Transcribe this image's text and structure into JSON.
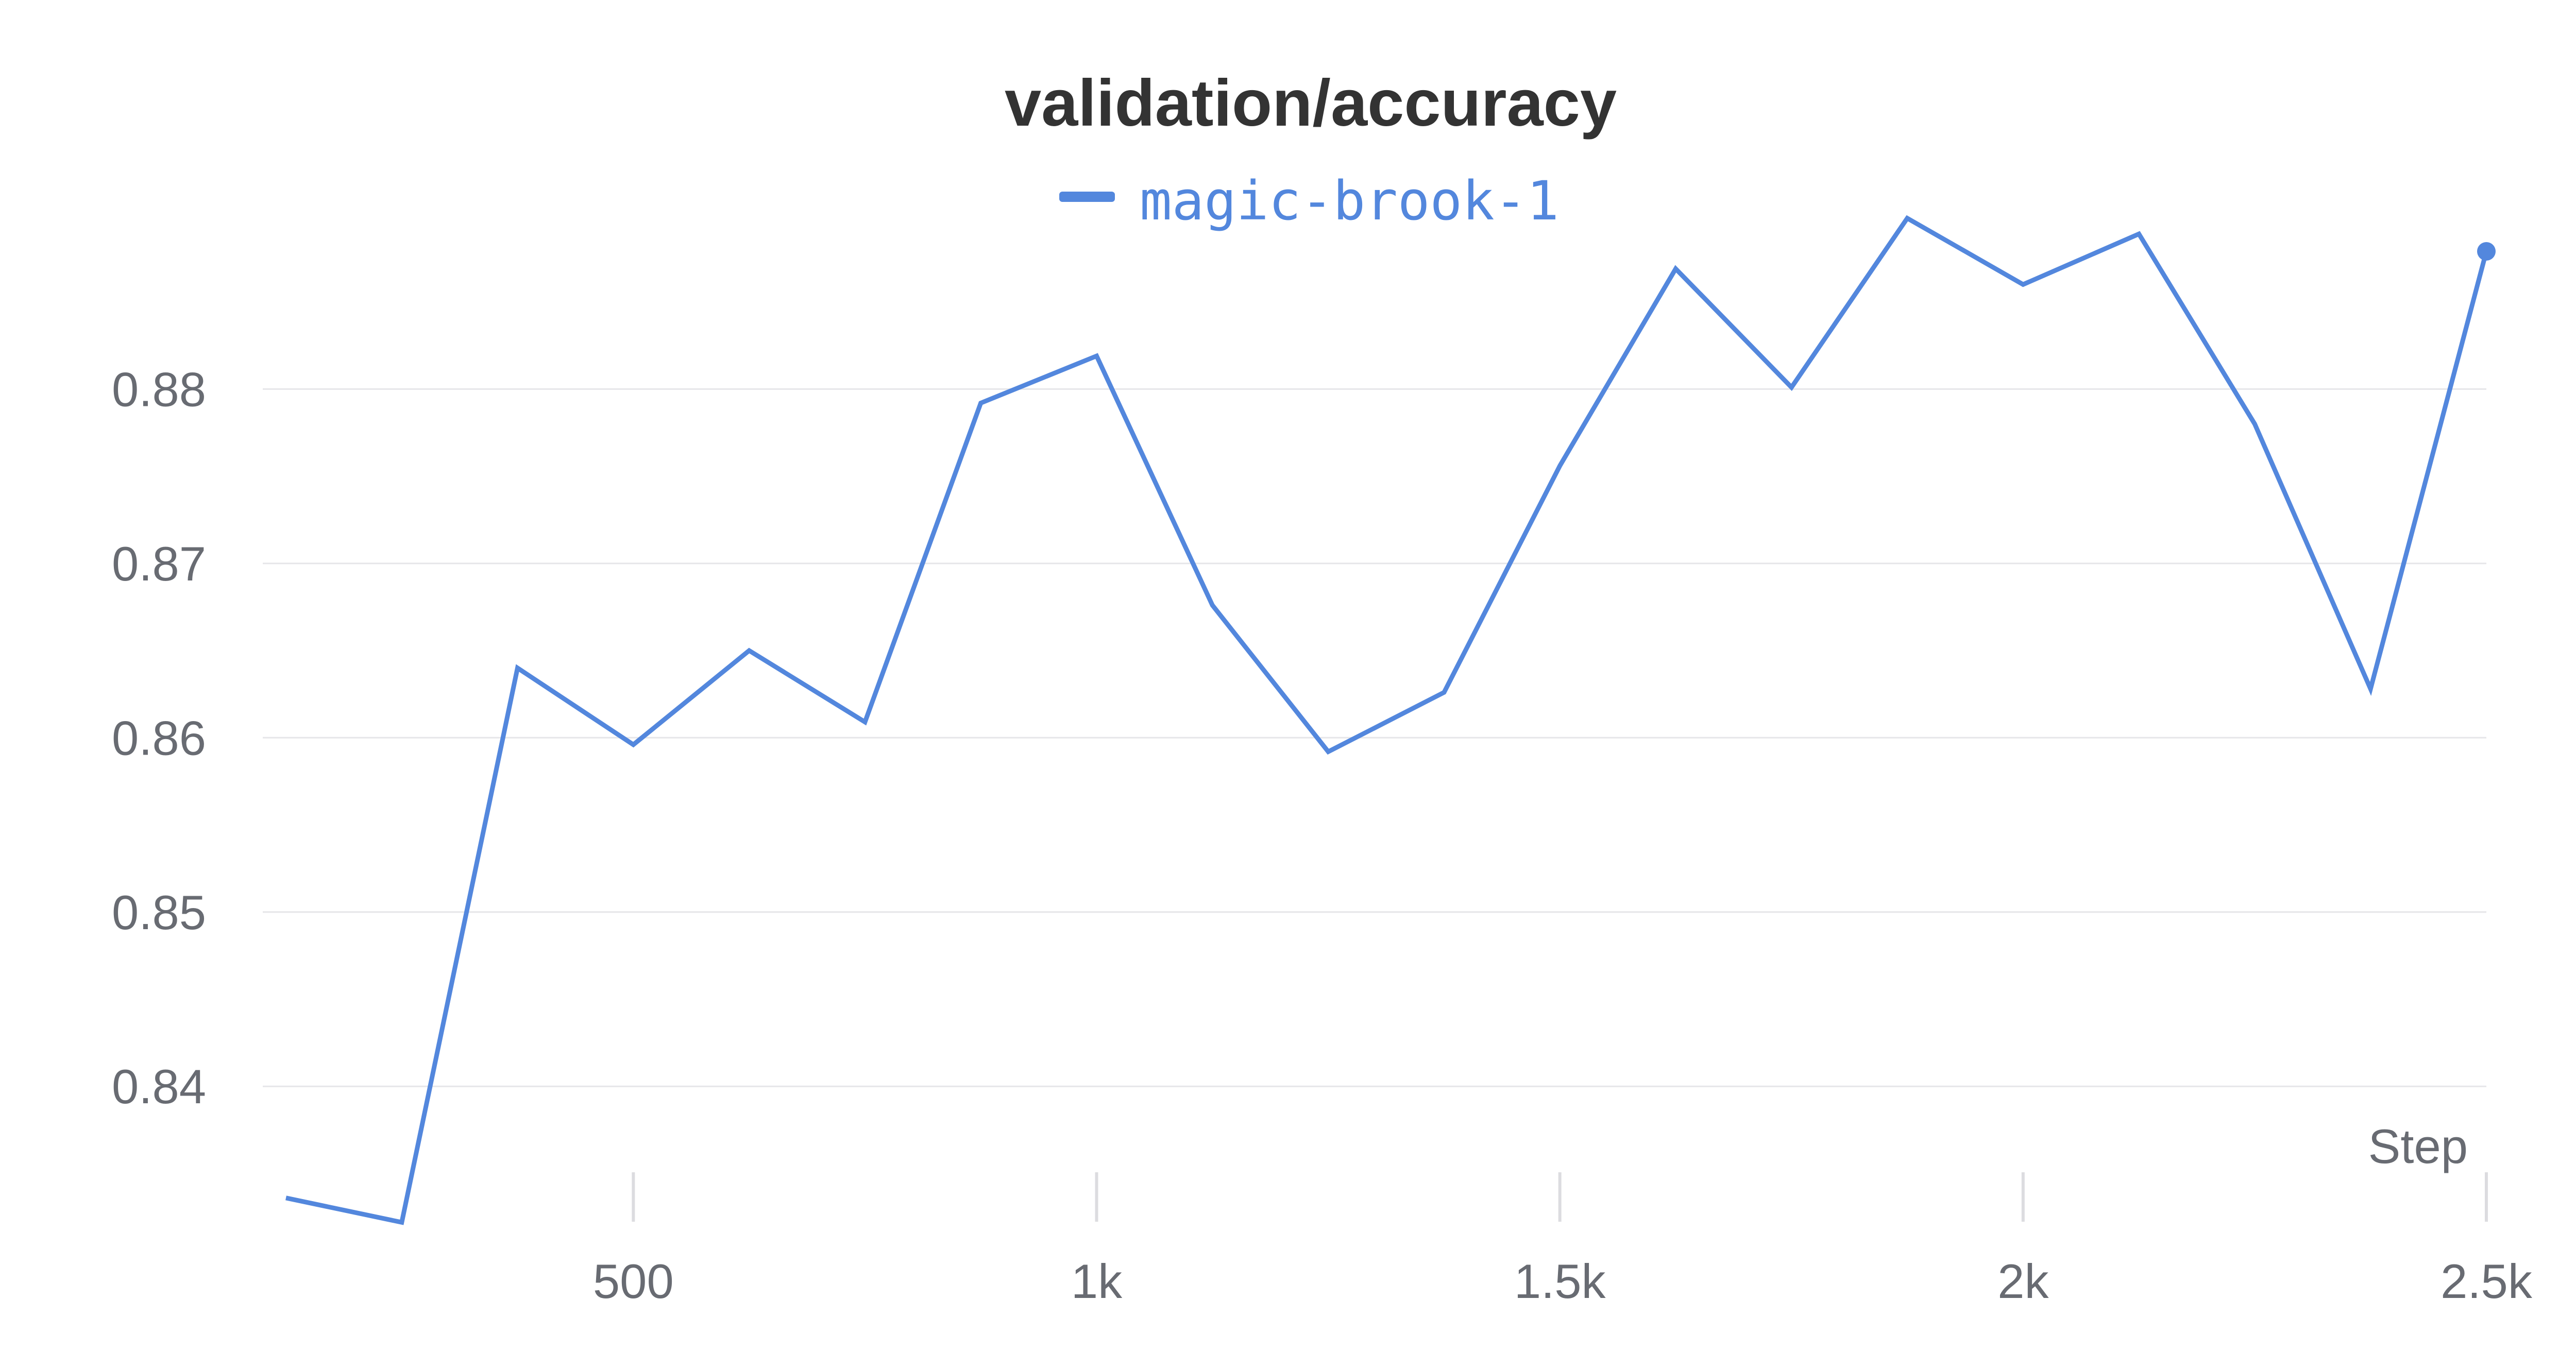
{
  "chart_data": {
    "type": "line",
    "title": "validation/accuracy",
    "xlabel": "Step",
    "ylabel": "",
    "xlim": [
      100,
      2500
    ],
    "ylim": [
      0.832,
      0.8905
    ],
    "x_ticks": [
      {
        "value": 500,
        "label": "500"
      },
      {
        "value": 1000,
        "label": "1k"
      },
      {
        "value": 1500,
        "label": "1.5k"
      },
      {
        "value": 2000,
        "label": "2k"
      },
      {
        "value": 2500,
        "label": "2.5k"
      }
    ],
    "y_ticks": [
      {
        "value": 0.84,
        "label": "0.84"
      },
      {
        "value": 0.85,
        "label": "0.85"
      },
      {
        "value": 0.86,
        "label": "0.86"
      },
      {
        "value": 0.87,
        "label": "0.87"
      },
      {
        "value": 0.88,
        "label": "0.88"
      }
    ],
    "grid": true,
    "legend_position": "top-center",
    "series": [
      {
        "name": "magic-brook-1",
        "color": "#5387dd",
        "x": [
          125,
          250,
          375,
          500,
          625,
          750,
          875,
          1000,
          1125,
          1250,
          1375,
          1500,
          1625,
          1750,
          1875,
          2000,
          2125,
          2250,
          2375,
          2500
        ],
        "values": [
          0.8336,
          0.8322,
          0.864,
          0.8596,
          0.865,
          0.8609,
          0.8792,
          0.8819,
          0.8676,
          0.8592,
          0.8626,
          0.8756,
          0.8869,
          0.8801,
          0.8898,
          0.886,
          0.8889,
          0.878,
          0.8628,
          0.8879
        ]
      }
    ]
  }
}
